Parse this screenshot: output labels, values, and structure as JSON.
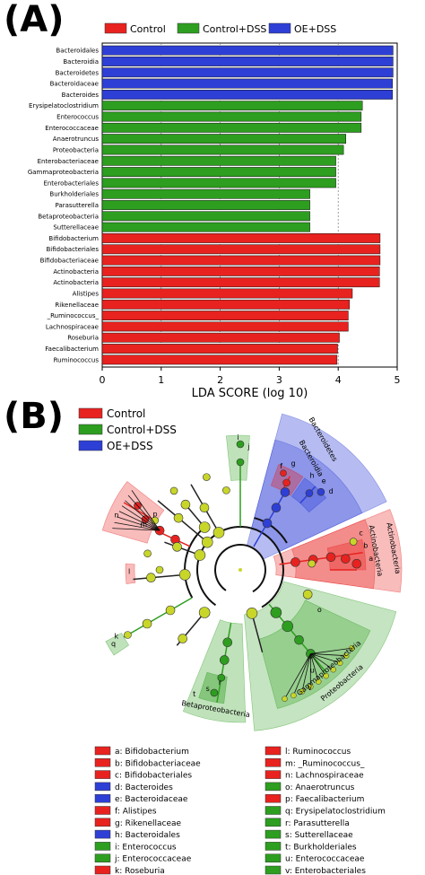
{
  "panels": {
    "a_label": "(A)",
    "b_label": "(B)"
  },
  "groups": [
    {
      "name": "Control",
      "color": "#e8221f"
    },
    {
      "name": "Control+DSS",
      "color": "#2d9e1f"
    },
    {
      "name": "OE+DSS",
      "color": "#2e3fd6"
    }
  ],
  "chart_data": {
    "type": "bar",
    "orientation": "horizontal",
    "xlabel": "LDA SCORE (log 10)",
    "xlim": [
      0,
      5
    ],
    "xticks": [
      0,
      1,
      2,
      3,
      4,
      5
    ],
    "grid": true,
    "legend_position": "top",
    "categories": [
      "Bacteroidales",
      "Bacteroidia",
      "Bacteroidetes",
      "Bacteroidaceae",
      "Bacteroides",
      "Erysipelatoclostridium",
      "Enterococcus",
      "Enterococcaceae",
      "Anaerotruncus",
      "Proteobacteria",
      "Enterobacteriaceae",
      "Gammaproteobacteria",
      "Enterobacteriales",
      "Burkholderiales",
      "Parasutterella",
      "Betaproteobacteria",
      "Sutterellaceae",
      "Bifidobacterium",
      "Bifidobacteriales",
      "Bifidobacteriaceae",
      "Actinobacteria",
      "Actinobacteria",
      "Alistipes",
      "Rikenellaceae",
      "_Ruminococcus_",
      "Lachnospiraceae",
      "Roseburia",
      "Faecalibacterium",
      "Ruminococcus"
    ],
    "values": [
      4.93,
      4.93,
      4.93,
      4.92,
      4.92,
      4.41,
      4.39,
      4.39,
      4.13,
      4.09,
      3.96,
      3.96,
      3.96,
      3.52,
      3.52,
      3.52,
      3.52,
      4.71,
      4.71,
      4.71,
      4.7,
      4.7,
      4.24,
      4.19,
      4.17,
      4.17,
      4.02,
      3.99,
      3.98
    ],
    "series_of_bar": [
      "OE+DSS",
      "OE+DSS",
      "OE+DSS",
      "OE+DSS",
      "OE+DSS",
      "Control+DSS",
      "Control+DSS",
      "Control+DSS",
      "Control+DSS",
      "Control+DSS",
      "Control+DSS",
      "Control+DSS",
      "Control+DSS",
      "Control+DSS",
      "Control+DSS",
      "Control+DSS",
      "Control+DSS",
      "Control",
      "Control",
      "Control",
      "Control",
      "Control",
      "Control",
      "Control",
      "Control",
      "Control",
      "Control",
      "Control",
      "Control"
    ]
  },
  "cladogram": {
    "clade_labels": [
      "Bacteroidetes",
      "Bacteroidia",
      "Actinobacteria",
      "Actinobacteria",
      "Gammaproteobacteria",
      "Proteobacteria",
      "Betaproteobacteria"
    ],
    "letters": [
      "a",
      "b",
      "c",
      "d",
      "e",
      "f",
      "g",
      "h",
      "i",
      "j",
      "k",
      "l",
      "m",
      "n",
      "o",
      "p",
      "q",
      "r",
      "s",
      "t",
      "u",
      "v"
    ],
    "legend": [
      {
        "text": "a: Bifidobacterium",
        "group": "Control"
      },
      {
        "text": "b: Bifidobacteriaceae",
        "group": "Control"
      },
      {
        "text": "c: Bifidobacteriales",
        "group": "Control"
      },
      {
        "text": "d: Bacteroides",
        "group": "OE+DSS"
      },
      {
        "text": "e: Bacteroidaceae",
        "group": "OE+DSS"
      },
      {
        "text": "f: Alistipes",
        "group": "Control"
      },
      {
        "text": "g: Rikenellaceae",
        "group": "Control"
      },
      {
        "text": "h: Bacteroidales",
        "group": "OE+DSS"
      },
      {
        "text": "i: Enterococcus",
        "group": "Control+DSS"
      },
      {
        "text": "j: Enterococcaceae",
        "group": "Control+DSS"
      },
      {
        "text": "k: Roseburia",
        "group": "Control"
      },
      {
        "text": "l: Ruminococcus",
        "group": "Control"
      },
      {
        "text": "m: _Ruminococcus_",
        "group": "Control"
      },
      {
        "text": "n: Lachnospiraceae",
        "group": "Control"
      },
      {
        "text": "o: Anaerotruncus",
        "group": "Control+DSS"
      },
      {
        "text": "p: Faecalibacterium",
        "group": "Control"
      },
      {
        "text": "q: Erysipelatoclostridium",
        "group": "Control+DSS"
      },
      {
        "text": "r: Parasutterella",
        "group": "Control+DSS"
      },
      {
        "text": "s: Sutterellaceae",
        "group": "Control+DSS"
      },
      {
        "text": "t: Burkholderiales",
        "group": "Control+DSS"
      },
      {
        "text": "u: Enterococcaceae",
        "group": "Control+DSS"
      },
      {
        "text": "v: Enterobacteriales",
        "group": "Control+DSS"
      }
    ]
  }
}
